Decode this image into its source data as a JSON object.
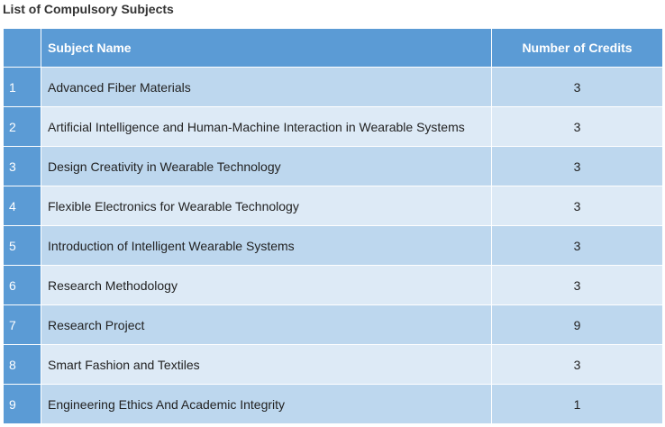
{
  "heading": "List of Compulsory Subjects",
  "table": {
    "headers": {
      "number": "",
      "name": "Subject Name",
      "credits": "Number of Credits"
    },
    "rows": [
      {
        "no": "1",
        "name": "Advanced Fiber Materials",
        "credits": "3"
      },
      {
        "no": "2",
        "name": "Artificial Intelligence and Human-Machine Interaction in Wearable Systems",
        "credits": "3"
      },
      {
        "no": "3",
        "name": "Design Creativity in Wearable Technology",
        "credits": "3"
      },
      {
        "no": "4",
        "name": "Flexible Electronics for Wearable Technology",
        "credits": "3"
      },
      {
        "no": "5",
        "name": "Introduction of Intelligent Wearable Systems",
        "credits": "3"
      },
      {
        "no": "6",
        "name": "Research Methodology",
        "credits": "3"
      },
      {
        "no": "7",
        "name": "Research Project",
        "credits": "9"
      },
      {
        "no": "8",
        "name": "Smart Fashion and Textiles",
        "credits": "3"
      },
      {
        "no": "9",
        "name": "Engineering Ethics And Academic Integrity",
        "credits": "1"
      }
    ]
  },
  "colors": {
    "header_bg": "#5b9bd5",
    "row_odd_bg": "#bdd7ee",
    "row_even_bg": "#ddeaf6"
  }
}
